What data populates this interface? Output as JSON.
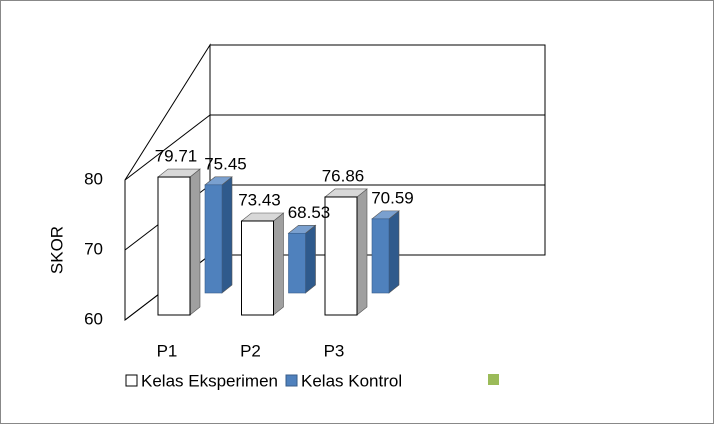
{
  "chart_data": {
    "type": "bar3d",
    "ylabel": "SKOR",
    "categories": [
      "P1",
      "P2",
      "P3"
    ],
    "series": [
      {
        "name": "Kelas Eksperimen",
        "color": "#ffffff",
        "values": [
          79.71,
          73.43,
          76.86
        ]
      },
      {
        "name": "Kelas Kontrol",
        "color": "#4f81bd",
        "values": [
          75.45,
          68.53,
          70.59
        ]
      }
    ],
    "ylim": [
      60,
      90
    ],
    "yticks": [
      60,
      70,
      80
    ],
    "grid": true
  }
}
